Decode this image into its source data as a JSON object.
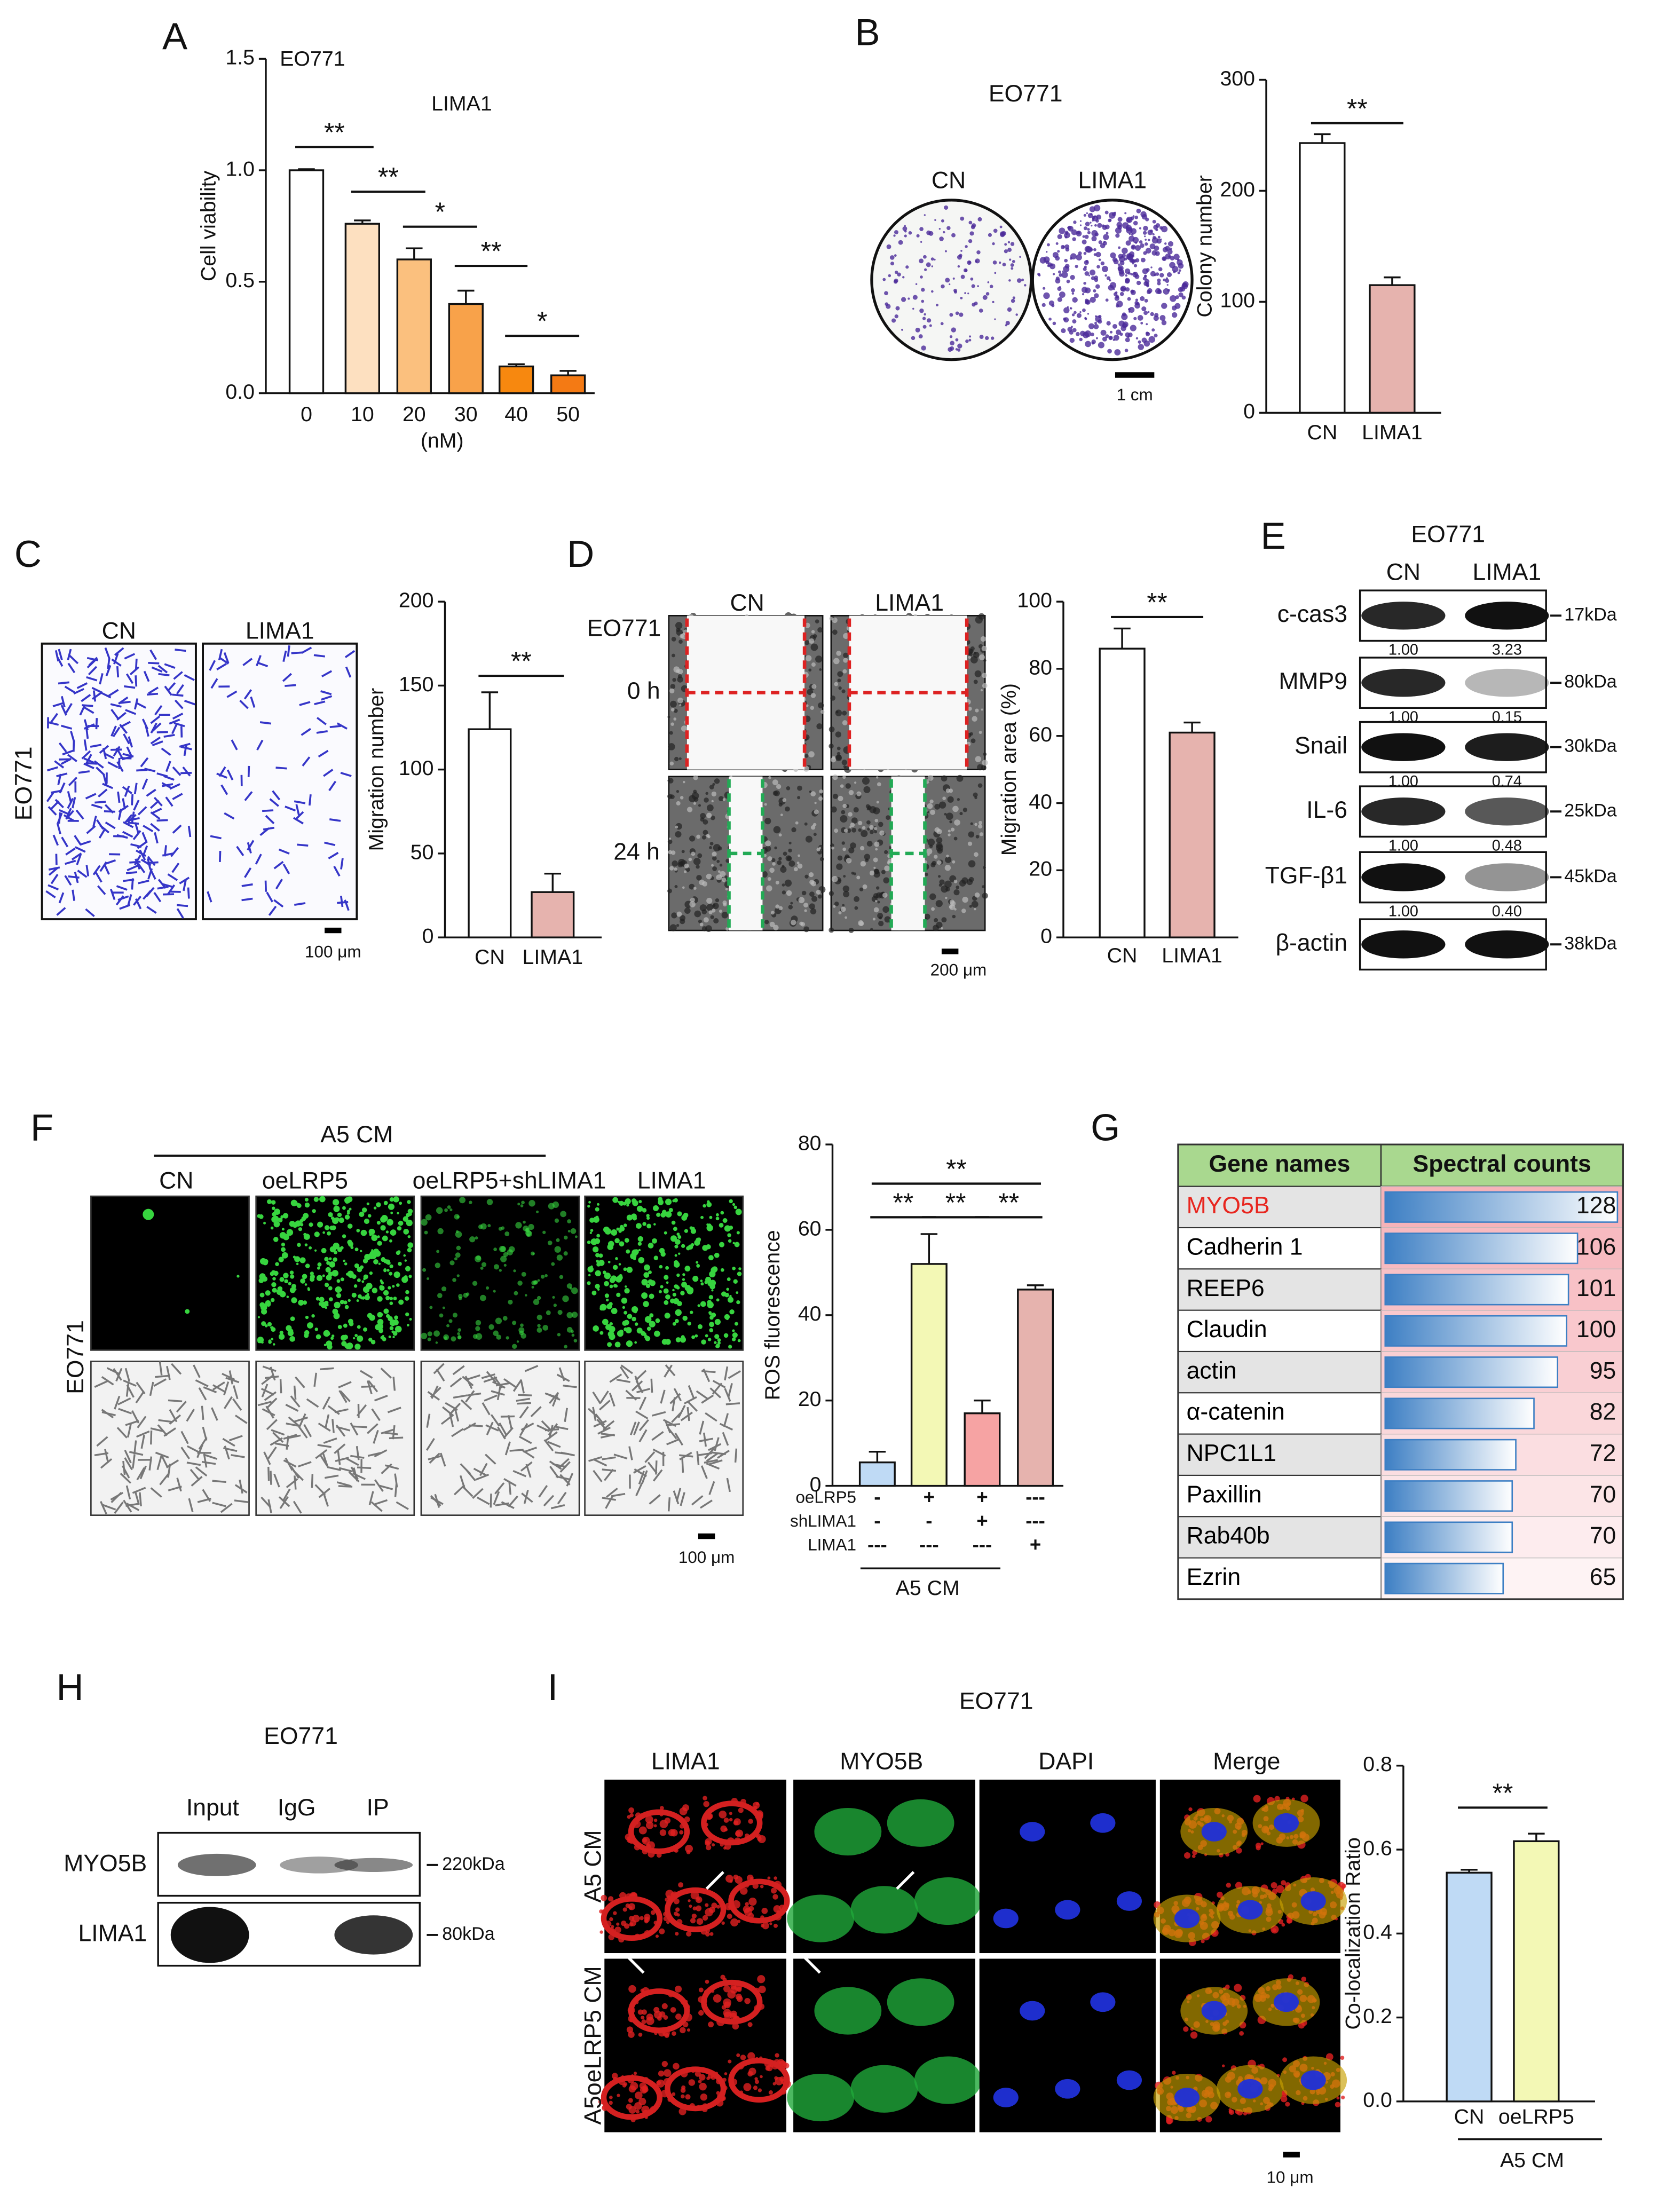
{
  "chart_data": [
    {
      "type": "bar",
      "title": "EO771",
      "subtitle": "LIMA1",
      "ylabel": "Cell viability",
      "xlabel": "(nM)",
      "categories": [
        "0",
        "10",
        "20",
        "30",
        "40",
        "50"
      ],
      "values": [
        1.0,
        0.76,
        0.6,
        0.4,
        0.12,
        0.08
      ],
      "errors": [
        0.005,
        0.015,
        0.05,
        0.06,
        0.01,
        0.02
      ],
      "colors": [
        "#ffffff",
        "#fde0c0",
        "#fbc07e",
        "#f8a24a",
        "#f7880f",
        "#f47a14"
      ],
      "ylim": [
        0,
        1.5
      ],
      "yticks": [
        {
          "value": 0,
          "label": "0.0"
        },
        0.5,
        {
          "value": 1,
          "label": "1.0"
        },
        1.5
      ],
      "annotations": [
        "**",
        "**",
        "*",
        "**",
        "*"
      ]
    },
    {
      "type": "bar",
      "ylabel": "Colony number",
      "categories": [
        "CN",
        "LIMA1"
      ],
      "values": [
        243,
        115
      ],
      "errors": [
        8,
        7
      ],
      "colors": [
        "#ffffff",
        "#e6b3ae"
      ],
      "ylim": [
        0,
        300
      ],
      "yticks": [
        0,
        100,
        200,
        300
      ],
      "annotations": [
        "**"
      ]
    },
    {
      "type": "bar",
      "ylabel": "Migration number",
      "categories": [
        "CN",
        "LIMA1"
      ],
      "values": [
        124,
        27
      ],
      "errors": [
        22,
        11
      ],
      "colors": [
        "#ffffff",
        "#e6b3ae"
      ],
      "ylim": [
        0,
        200
      ],
      "yticks": [
        0,
        50,
        100,
        150,
        200
      ],
      "annotations": [
        "**"
      ]
    },
    {
      "type": "bar",
      "ylabel": "Migration area (%)",
      "categories": [
        "CN",
        "LIMA1"
      ],
      "values": [
        86,
        61
      ],
      "errors": [
        6,
        3
      ],
      "colors": [
        "#ffffff",
        "#e6b3ae"
      ],
      "ylim": [
        0,
        100
      ],
      "yticks": [
        0,
        20,
        40,
        60,
        80,
        100
      ],
      "annotations": [
        "**"
      ]
    },
    {
      "type": "bar",
      "ylabel": "ROS fluorescence",
      "xlabel": "A5 CM",
      "values": [
        5.5,
        52,
        17,
        46
      ],
      "errors": [
        2.5,
        7,
        3,
        1
      ],
      "colors": [
        "#bfdaf5",
        "#f3f8b5",
        "#f6a3a3",
        "#e6b3ae"
      ],
      "ylim": [
        0,
        80
      ],
      "yticks": [
        0,
        20,
        40,
        60,
        80
      ],
      "conditions": {
        "rows": [
          "oeLRP5",
          "shLIMA1",
          "LIMA1"
        ],
        "cells": [
          [
            "-",
            "+",
            "+",
            "---"
          ],
          [
            "-",
            "-",
            "+",
            "---"
          ],
          [
            "---",
            "---",
            "---",
            "+"
          ]
        ]
      },
      "annotations": [
        "**",
        "**",
        "**",
        "**"
      ]
    },
    {
      "type": "table-bar",
      "headers": [
        "Gene names",
        "Spectral counts"
      ],
      "categories": [
        "MYO5B",
        "Cadherin 1",
        "REEP6",
        "Claudin",
        "actin",
        "α-catenin",
        "NPC1L1",
        "Paxillin",
        "Rab40b",
        "Ezrin"
      ],
      "values": [
        128,
        106,
        101,
        100,
        95,
        82,
        72,
        70,
        70,
        65
      ],
      "category_colors": [
        "#e8261f",
        "#000000",
        "#000000",
        "#000000",
        "#000000",
        "#000000",
        "#000000",
        "#000000",
        "#000000",
        "#000000"
      ],
      "color": "#3d7fc4"
    },
    {
      "type": "bar",
      "ylabel": "Co-localization Ratio",
      "xlabel": "A5 CM",
      "categories": [
        "CN",
        "oeLRP5"
      ],
      "values": [
        0.545,
        0.62
      ],
      "errors": [
        0.007,
        0.018
      ],
      "colors": [
        "#bfdaf5",
        "#f3f8b5"
      ],
      "ylim": [
        0,
        0.8
      ],
      "yticks": [
        {
          "value": 0,
          "label": "0.0"
        },
        0.2,
        0.4,
        0.6,
        0.8
      ],
      "annotations": [
        "**"
      ]
    }
  ],
  "figure": {
    "letters": [
      "A",
      "B",
      "C",
      "D",
      "E",
      "F",
      "G",
      "H",
      "I"
    ],
    "B": {
      "title": "EO771",
      "labels": [
        "CN",
        "LIMA1"
      ],
      "scale": "1 cm"
    },
    "C": {
      "row": "EO771",
      "labels": [
        "CN",
        "LIMA1"
      ],
      "scale": "100 μm"
    },
    "D": {
      "row": "EO771",
      "labels": [
        "CN",
        "LIMA1"
      ],
      "times": [
        "0 h",
        "24 h"
      ],
      "scale": "200 μm"
    },
    "E": {
      "title": "EO771",
      "labels": [
        "CN",
        "LIMA1"
      ],
      "rows": [
        {
          "name": "c-cas3",
          "size": "17kDa",
          "quant": [
            "1.00",
            "3.23"
          ]
        },
        {
          "name": "MMP9",
          "size": "80kDa",
          "quant": [
            "1.00",
            "0.15"
          ]
        },
        {
          "name": "Snail",
          "size": "30kDa",
          "quant": [
            "1.00",
            "0.74"
          ]
        },
        {
          "name": "IL-6",
          "size": "25kDa",
          "quant": [
            "1.00",
            "0.48"
          ]
        },
        {
          "name": "TGF-β1",
          "size": "45kDa",
          "quant": [
            "1.00",
            "0.40"
          ]
        },
        {
          "name": "β-actin",
          "size": "38kDa"
        }
      ]
    },
    "F": {
      "group": "A5 CM",
      "labels": [
        "CN",
        "oeLRP5",
        "oeLRP5+shLIMA1",
        "LIMA1"
      ],
      "row": "EO771",
      "scale": "100 μm"
    },
    "H": {
      "title": "EO771",
      "labels": [
        "Input",
        "IgG",
        "IP"
      ],
      "rows": [
        {
          "name": "MYO5B",
          "size": "220kDa"
        },
        {
          "name": "LIMA1",
          "size": "80kDa"
        }
      ]
    },
    "I": {
      "title": "EO771",
      "labels": [
        "LIMA1",
        "MYO5B",
        "DAPI",
        "Merge"
      ],
      "rows": [
        "A5 CM",
        "A5oeLRP5 CM"
      ],
      "scale": "10 μm"
    }
  }
}
